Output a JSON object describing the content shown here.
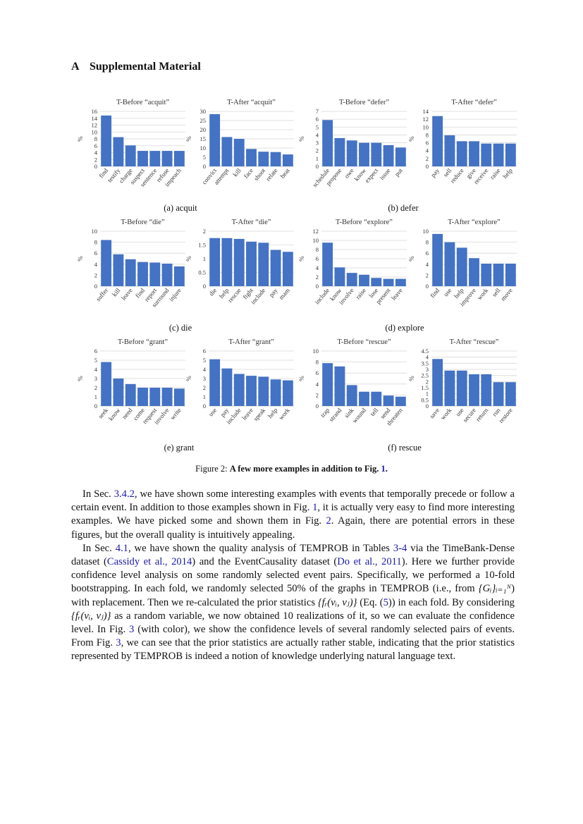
{
  "section": {
    "number": "A",
    "title": "Supplemental Material"
  },
  "colors": {
    "bar": "#4472c4",
    "grid": "#d9d9d9",
    "link": "#1a1aa6"
  },
  "chart_data": [
    {
      "type": "bar",
      "title": "T-Before “acquit”",
      "ylabel": "%",
      "ylim": [
        0,
        16
      ],
      "yticks": [
        0,
        2,
        4,
        6,
        8,
        10,
        12,
        14,
        16
      ],
      "categories": [
        "find",
        "testify",
        "charge",
        "suspect",
        "sentence",
        "refuse",
        "impeach"
      ],
      "values": [
        14.8,
        8.5,
        6.1,
        4.5,
        4.5,
        4.5,
        4.5
      ]
    },
    {
      "type": "bar",
      "title": "T-After “acquit”",
      "ylabel": "%",
      "ylim": [
        0,
        30
      ],
      "yticks": [
        0,
        5,
        10,
        15,
        20,
        25,
        30
      ],
      "categories": [
        "convict",
        "attempt",
        "kill",
        "face",
        "shoot",
        "relate",
        "beat"
      ],
      "values": [
        28.5,
        16,
        15,
        9.5,
        8,
        7.8,
        6.5
      ]
    },
    {
      "type": "bar",
      "title": "T-Before “defer”",
      "ylabel": "%",
      "ylim": [
        0,
        7
      ],
      "yticks": [
        0,
        1,
        2,
        3,
        4,
        5,
        6,
        7
      ],
      "categories": [
        "schedule",
        "propose",
        "owe",
        "know",
        "expect",
        "issue",
        "put"
      ],
      "values": [
        5.9,
        3.6,
        3.3,
        3.0,
        3.0,
        2.7,
        2.4
      ]
    },
    {
      "type": "bar",
      "title": "T-After “defer”",
      "ylabel": "%",
      "ylim": [
        0,
        14
      ],
      "yticks": [
        0,
        2,
        4,
        6,
        8,
        10,
        12,
        14
      ],
      "categories": [
        "pay",
        "sell",
        "reduce",
        "give",
        "receive",
        "raise",
        "help"
      ],
      "values": [
        12.8,
        7.9,
        6.4,
        6.4,
        5.8,
        5.8,
        5.8
      ]
    },
    {
      "type": "bar",
      "title": "T-Before “die”",
      "ylabel": "%",
      "ylim": [
        0,
        10
      ],
      "yticks": [
        0,
        2,
        4,
        6,
        8,
        10
      ],
      "categories": [
        "suffer",
        "kill",
        "leave",
        "find",
        "report",
        "surround",
        "injure"
      ],
      "values": [
        8.4,
        5.8,
        4.9,
        4.4,
        4.3,
        4.1,
        3.6
      ]
    },
    {
      "type": "bar",
      "title": "T-After “die”",
      "ylabel": "%",
      "ylim": [
        0,
        2
      ],
      "yticks": [
        0,
        0.5,
        1,
        1.5,
        2
      ],
      "categories": [
        "die",
        "help",
        "rescue",
        "fight",
        "include",
        "pay",
        "mam"
      ],
      "values": [
        1.75,
        1.75,
        1.72,
        1.62,
        1.58,
        1.32,
        1.25
      ]
    },
    {
      "type": "bar",
      "title": "T-Before “explore”",
      "ylabel": "%",
      "ylim": [
        0,
        12
      ],
      "yticks": [
        0,
        2,
        4,
        6,
        8,
        10,
        12
      ],
      "categories": [
        "include",
        "know",
        "involve",
        "raise",
        "lose",
        "present",
        "leave"
      ],
      "values": [
        9.5,
        4.1,
        2.9,
        2.5,
        1.8,
        1.6,
        1.6
      ]
    },
    {
      "type": "bar",
      "title": "T-After “explore”",
      "ylabel": "%",
      "ylim": [
        0,
        10
      ],
      "yticks": [
        0,
        2,
        4,
        6,
        8,
        10
      ],
      "categories": [
        "find",
        "use",
        "help",
        "improve",
        "work",
        "sell",
        "move"
      ],
      "values": [
        9.5,
        8,
        7,
        5.1,
        4.1,
        4.1,
        4.1
      ]
    },
    {
      "type": "bar",
      "title": "T-Before “grant”",
      "ylabel": "%",
      "ylim": [
        0,
        6
      ],
      "yticks": [
        0,
        1,
        2,
        3,
        4,
        5,
        6
      ],
      "categories": [
        "seek",
        "know",
        "need",
        "come",
        "request",
        "involve",
        "write"
      ],
      "values": [
        4.8,
        3.0,
        2.4,
        2.0,
        2.0,
        2.0,
        1.9
      ]
    },
    {
      "type": "bar",
      "title": "T-After “grant”",
      "ylabel": "%",
      "ylim": [
        0,
        6
      ],
      "yticks": [
        0,
        1,
        2,
        3,
        4,
        5,
        6
      ],
      "categories": [
        "use",
        "pay",
        "include",
        "leave",
        "speak",
        "help",
        "work"
      ],
      "values": [
        5.1,
        4.1,
        3.5,
        3.3,
        3.2,
        2.9,
        2.8
      ]
    },
    {
      "type": "bar",
      "title": "T-Before “rescue”",
      "ylabel": "%",
      "ylim": [
        0,
        10
      ],
      "yticks": [
        0,
        2,
        4,
        6,
        8,
        10
      ],
      "categories": [
        "trap",
        "strand",
        "sink",
        "wound",
        "tell",
        "send",
        "threaten"
      ],
      "values": [
        7.8,
        7.2,
        3.8,
        2.6,
        2.6,
        1.9,
        1.7
      ]
    },
    {
      "type": "bar",
      "title": "T-After “rescue”",
      "ylabel": "%",
      "ylim": [
        0,
        4.5
      ],
      "yticks": [
        0,
        0.5,
        1,
        1.5,
        2,
        2.5,
        3,
        3.5,
        4,
        4.5
      ],
      "categories": [
        "save",
        "work",
        "use",
        "secure",
        "return",
        "run",
        "restore"
      ],
      "values": [
        3.85,
        2.9,
        2.9,
        2.6,
        2.6,
        1.95,
        1.95
      ]
    }
  ],
  "subcaptions": [
    "(a) acquit",
    "(b) defer",
    "(c) die",
    "(d) explore",
    "(e) grant",
    "(f) rescue"
  ],
  "figure_caption": {
    "label": "Figure 2:",
    "text": "A few more examples in addition to Fig.",
    "ref": "1",
    "end": "."
  },
  "body": {
    "p1": {
      "s1": "In Sec.",
      "r1": "3.4.2",
      "s2": ", we have shown some interesting examples with events that temporally precede or follow a certain event.  In addition to those examples shown in Fig.",
      "r2": "1",
      "s3": ", it is actually very easy to find more interesting examples. We have picked some and shown them in Fig.",
      "r3": "2",
      "s4": ". Again, there are potential errors in these figures, but the overall quality is intuitively appealing."
    },
    "p2": {
      "s1": "In Sec.",
      "r1": "4.1",
      "s2": ", we have shown the quality analysis of",
      "temprob": "TEMPROB",
      "s3": "in Tables",
      "r2": "3-4",
      "s4": "via the TimeBank-Dense dataset (",
      "c1": "Cassidy et al., 2014",
      "s5": ") and the EventCausality dataset (",
      "c2": "Do et al., 2011",
      "s6": ").  Here we further provide confidence level analysis on some randomly selected event pairs.  Specifically, we performed a 10-fold bootstrapping. In each fold, we randomly selected 50% of the graphs in",
      "s7": "(i.e., from",
      "m1": "{Gᵢ}ᵢ₌₁ᴺ",
      "s8": ") with replacement.  Then we re-calculated the prior statistics",
      "m2": "{fᵣ(vᵢ, vⱼ)}",
      "s9": "(Eq. (",
      "r3": "5",
      "s10": ")) in each fold.  By considering",
      "s11": "as a random variable, we now obtained 10 realizations of it, so we can evaluate the confidence level.  In Fig.",
      "r4": "3",
      "s12": "(with color), we show the confidence levels of several randomly selected pairs of events.  From Fig.",
      "r5": "3",
      "s13": ", we can see that the prior statistics are actually rather stable, indicating that the prior statistics represented by",
      "s14": "is indeed a notion of knowledge underlying natural language text."
    }
  }
}
